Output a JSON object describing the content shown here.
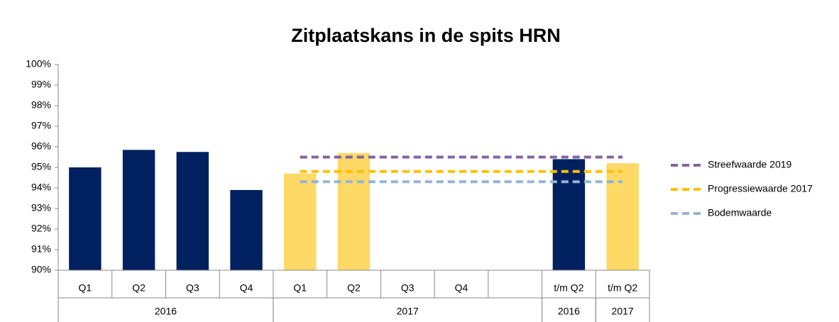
{
  "chart_data": {
    "type": "bar",
    "title": "Zitplaatskans in de spits HRN",
    "categories": [
      "Q1",
      "Q2",
      "Q3",
      "Q4",
      "Q1",
      "Q2",
      "Q3",
      "Q4",
      null,
      "t/m Q2",
      "t/m Q2"
    ],
    "groups": [
      "2016",
      "2017",
      "2016",
      "2017"
    ],
    "values": [
      95.0,
      95.85,
      95.75,
      93.9,
      94.7,
      95.7,
      null,
      null,
      null,
      95.4,
      95.2
    ],
    "colors": [
      "#002060",
      "#002060",
      "#002060",
      "#002060",
      "#ffd966",
      "#ffd966",
      "#ffd966",
      "#ffd966",
      "#ffd966",
      "#002060",
      "#ffd966"
    ],
    "series": [
      {
        "name": "Streefwaarde 2019",
        "color": "#8064a2",
        "values": [
          null,
          null,
          null,
          null,
          95.5,
          95.5,
          95.5,
          95.5,
          95.5,
          95.5,
          95.5
        ]
      },
      {
        "name": "Progressiewaarde 2017",
        "color": "#ffc000",
        "values": [
          null,
          null,
          null,
          null,
          94.8,
          94.8,
          94.8,
          94.8,
          94.8,
          94.8,
          94.8
        ]
      },
      {
        "name": "Bodemwaarde",
        "color": "#95b3d7",
        "values": [
          null,
          null,
          null,
          null,
          94.3,
          94.3,
          94.3,
          94.3,
          94.3,
          94.3,
          94.3
        ]
      }
    ],
    "ylim": [
      90,
      100
    ],
    "yticks": [
      {
        "value": 90,
        "label": "90%"
      },
      {
        "value": 91,
        "label": "91%"
      },
      {
        "value": 92,
        "label": "92%"
      },
      {
        "value": 93,
        "label": "93%"
      },
      {
        "value": 94,
        "label": "94%"
      },
      {
        "value": 95,
        "label": "95%"
      },
      {
        "value": 96,
        "label": "96%"
      },
      {
        "value": 97,
        "label": "97%"
      },
      {
        "value": 98,
        "label": "98%"
      },
      {
        "value": 99,
        "label": "99%"
      },
      {
        "value": 100,
        "label": "100%"
      }
    ],
    "legend": "right"
  }
}
